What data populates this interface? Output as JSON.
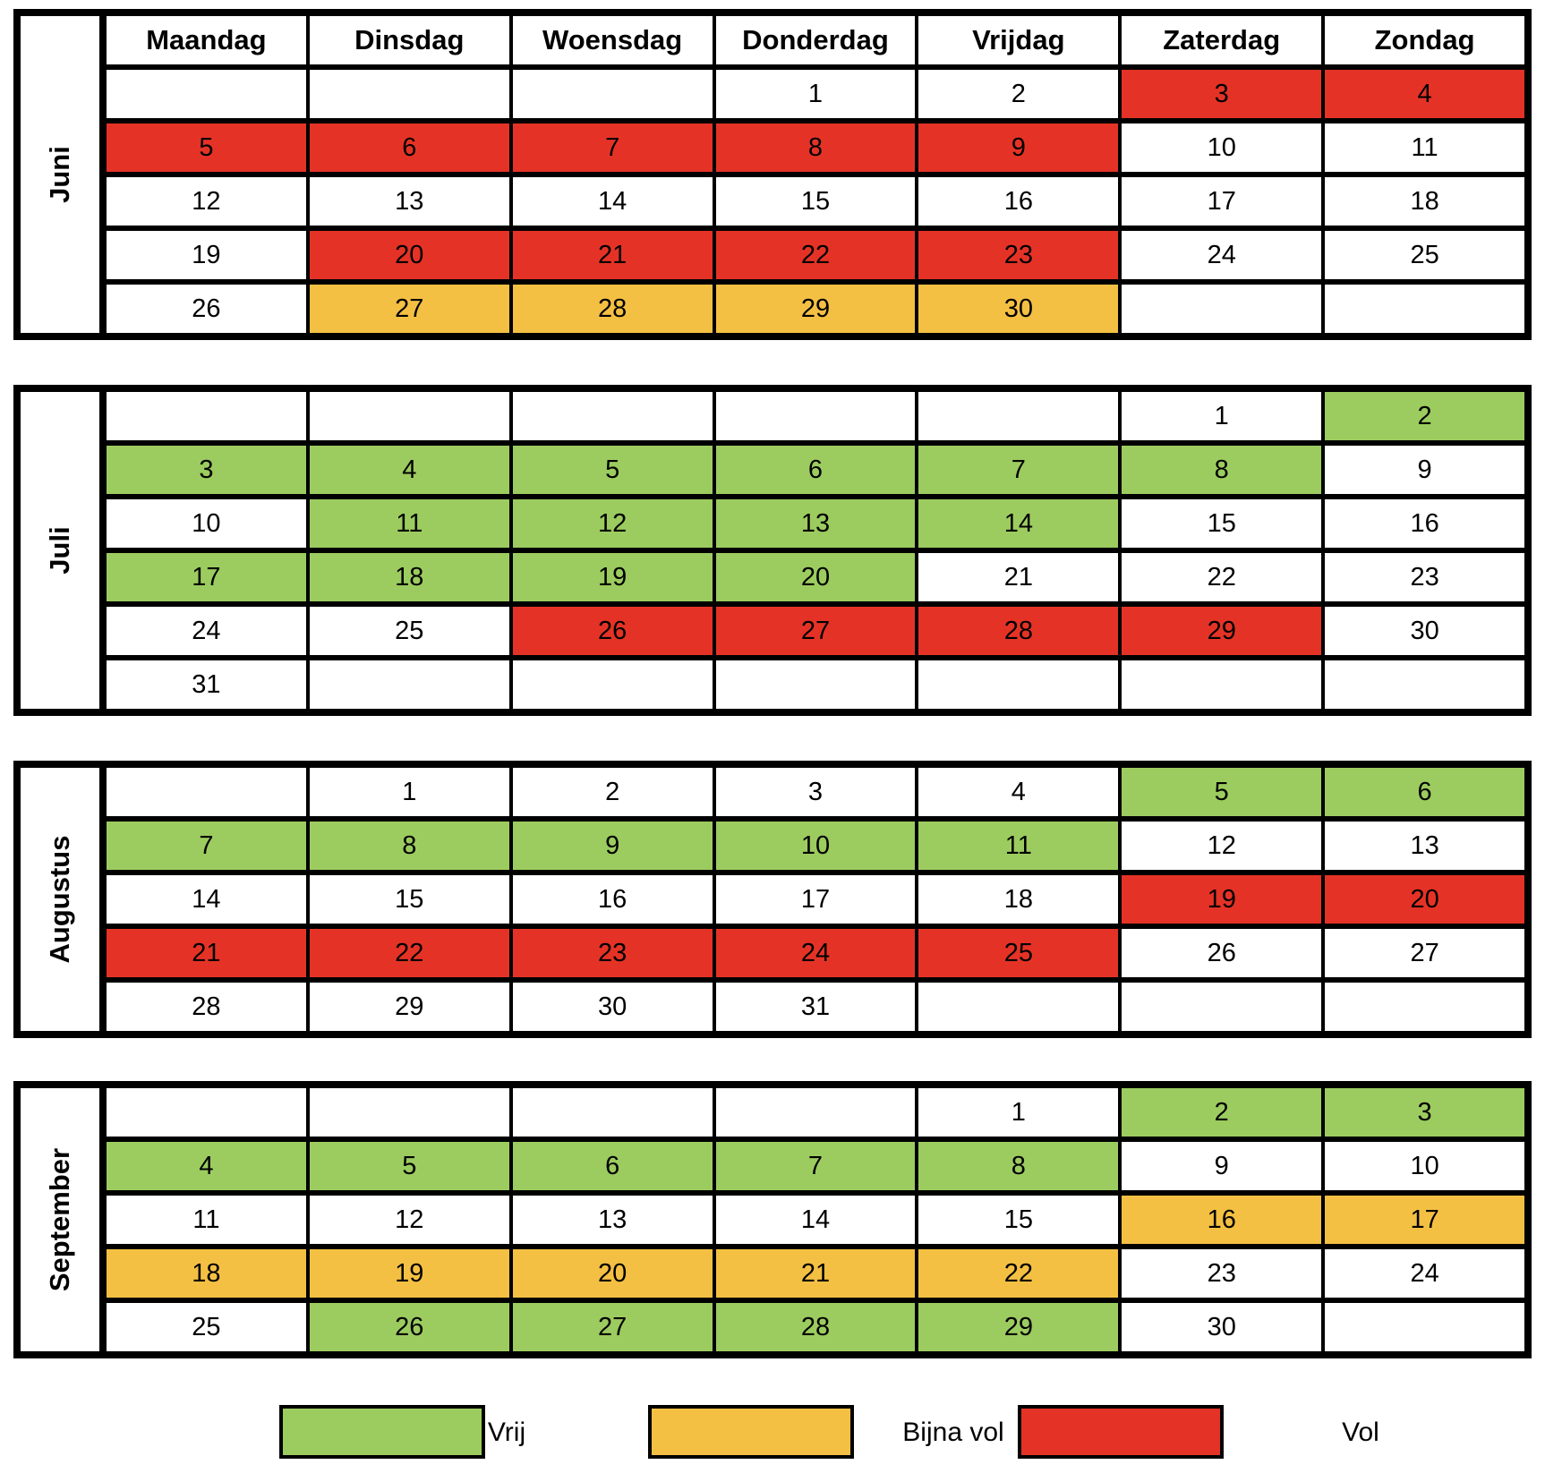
{
  "weekdays": [
    "Maandag",
    "Dinsdag",
    "Woensdag",
    "Donderdag",
    "Vrijdag",
    "Zaterdag",
    "Zondag"
  ],
  "colors": {
    "vrij": "#9ccc5f",
    "bijna_vol": "#f4c043",
    "vol": "#e43326",
    "empty": "#ffffff",
    "border": "#000000"
  },
  "months": [
    {
      "name": "Juni",
      "weeks": [
        [
          [
            "",
            ""
          ],
          [
            "",
            ""
          ],
          [
            "",
            ""
          ],
          [
            "1",
            ""
          ],
          [
            "2",
            ""
          ],
          [
            "3",
            "vol"
          ],
          [
            "4",
            "vol"
          ]
        ],
        [
          [
            "5",
            "vol"
          ],
          [
            "6",
            "vol"
          ],
          [
            "7",
            "vol"
          ],
          [
            "8",
            "vol"
          ],
          [
            "9",
            "vol"
          ],
          [
            "10",
            ""
          ],
          [
            "11",
            ""
          ]
        ],
        [
          [
            "12",
            ""
          ],
          [
            "13",
            ""
          ],
          [
            "14",
            ""
          ],
          [
            "15",
            ""
          ],
          [
            "16",
            ""
          ],
          [
            "17",
            ""
          ],
          [
            "18",
            ""
          ]
        ],
        [
          [
            "19",
            ""
          ],
          [
            "20",
            "vol"
          ],
          [
            "21",
            "vol"
          ],
          [
            "22",
            "vol"
          ],
          [
            "23",
            "vol"
          ],
          [
            "24",
            ""
          ],
          [
            "25",
            ""
          ]
        ],
        [
          [
            "26",
            ""
          ],
          [
            "27",
            "bijna_vol"
          ],
          [
            "28",
            "bijna_vol"
          ],
          [
            "29",
            "bijna_vol"
          ],
          [
            "30",
            "bijna_vol"
          ],
          [
            "",
            ""
          ],
          [
            "",
            ""
          ]
        ]
      ]
    },
    {
      "name": "Juli",
      "weeks": [
        [
          [
            "",
            ""
          ],
          [
            "",
            ""
          ],
          [
            "",
            ""
          ],
          [
            "",
            ""
          ],
          [
            "",
            ""
          ],
          [
            "1",
            ""
          ],
          [
            "2",
            "vrij"
          ]
        ],
        [
          [
            "3",
            "vrij"
          ],
          [
            "4",
            "vrij"
          ],
          [
            "5",
            "vrij"
          ],
          [
            "6",
            "vrij"
          ],
          [
            "7",
            "vrij"
          ],
          [
            "8",
            "vrij"
          ],
          [
            "9",
            ""
          ]
        ],
        [
          [
            "10",
            ""
          ],
          [
            "11",
            "vrij"
          ],
          [
            "12",
            "vrij"
          ],
          [
            "13",
            "vrij"
          ],
          [
            "14",
            "vrij"
          ],
          [
            "15",
            ""
          ],
          [
            "16",
            ""
          ]
        ],
        [
          [
            "17",
            "vrij"
          ],
          [
            "18",
            "vrij"
          ],
          [
            "19",
            "vrij"
          ],
          [
            "20",
            "vrij"
          ],
          [
            "21",
            ""
          ],
          [
            "22",
            ""
          ],
          [
            "23",
            ""
          ]
        ],
        [
          [
            "24",
            ""
          ],
          [
            "25",
            ""
          ],
          [
            "26",
            "vol"
          ],
          [
            "27",
            "vol"
          ],
          [
            "28",
            "vol"
          ],
          [
            "29",
            "vol"
          ],
          [
            "30",
            ""
          ]
        ],
        [
          [
            "31",
            ""
          ],
          [
            "",
            ""
          ],
          [
            "",
            ""
          ],
          [
            "",
            ""
          ],
          [
            "",
            ""
          ],
          [
            "",
            ""
          ],
          [
            "",
            ""
          ]
        ]
      ]
    },
    {
      "name": "Augustus",
      "weeks": [
        [
          [
            "",
            ""
          ],
          [
            "1",
            ""
          ],
          [
            "2",
            ""
          ],
          [
            "3",
            ""
          ],
          [
            "4",
            ""
          ],
          [
            "5",
            "vrij"
          ],
          [
            "6",
            "vrij"
          ]
        ],
        [
          [
            "7",
            "vrij"
          ],
          [
            "8",
            "vrij"
          ],
          [
            "9",
            "vrij"
          ],
          [
            "10",
            "vrij"
          ],
          [
            "11",
            "vrij"
          ],
          [
            "12",
            ""
          ],
          [
            "13",
            ""
          ]
        ],
        [
          [
            "14",
            ""
          ],
          [
            "15",
            ""
          ],
          [
            "16",
            ""
          ],
          [
            "17",
            ""
          ],
          [
            "18",
            ""
          ],
          [
            "19",
            "vol"
          ],
          [
            "20",
            "vol"
          ]
        ],
        [
          [
            "21",
            "vol"
          ],
          [
            "22",
            "vol"
          ],
          [
            "23",
            "vol"
          ],
          [
            "24",
            "vol"
          ],
          [
            "25",
            "vol"
          ],
          [
            "26",
            ""
          ],
          [
            "27",
            ""
          ]
        ],
        [
          [
            "28",
            ""
          ],
          [
            "29",
            ""
          ],
          [
            "30",
            ""
          ],
          [
            "31",
            ""
          ],
          [
            "",
            ""
          ],
          [
            "",
            ""
          ],
          [
            "",
            ""
          ]
        ]
      ]
    },
    {
      "name": "September",
      "weeks": [
        [
          [
            "",
            ""
          ],
          [
            "",
            ""
          ],
          [
            "",
            ""
          ],
          [
            "",
            ""
          ],
          [
            "1",
            ""
          ],
          [
            "2",
            "vrij"
          ],
          [
            "3",
            "vrij"
          ]
        ],
        [
          [
            "4",
            "vrij"
          ],
          [
            "5",
            "vrij"
          ],
          [
            "6",
            "vrij"
          ],
          [
            "7",
            "vrij"
          ],
          [
            "8",
            "vrij"
          ],
          [
            "9",
            ""
          ],
          [
            "10",
            ""
          ]
        ],
        [
          [
            "11",
            ""
          ],
          [
            "12",
            ""
          ],
          [
            "13",
            ""
          ],
          [
            "14",
            ""
          ],
          [
            "15",
            ""
          ],
          [
            "16",
            "bijna_vol"
          ],
          [
            "17",
            "bijna_vol"
          ]
        ],
        [
          [
            "18",
            "bijna_vol"
          ],
          [
            "19",
            "bijna_vol"
          ],
          [
            "20",
            "bijna_vol"
          ],
          [
            "21",
            "bijna_vol"
          ],
          [
            "22",
            "bijna_vol"
          ],
          [
            "23",
            ""
          ],
          [
            "24",
            ""
          ]
        ],
        [
          [
            "25",
            ""
          ],
          [
            "26",
            "vrij"
          ],
          [
            "27",
            "vrij"
          ],
          [
            "28",
            "vrij"
          ],
          [
            "29",
            "vrij"
          ],
          [
            "30",
            ""
          ],
          [
            "",
            ""
          ]
        ]
      ]
    }
  ],
  "legend": [
    {
      "status": "vrij",
      "label": "Vrij"
    },
    {
      "status": "bijna_vol",
      "label": "Bijna vol"
    },
    {
      "status": "vol",
      "label": "Vol"
    }
  ]
}
